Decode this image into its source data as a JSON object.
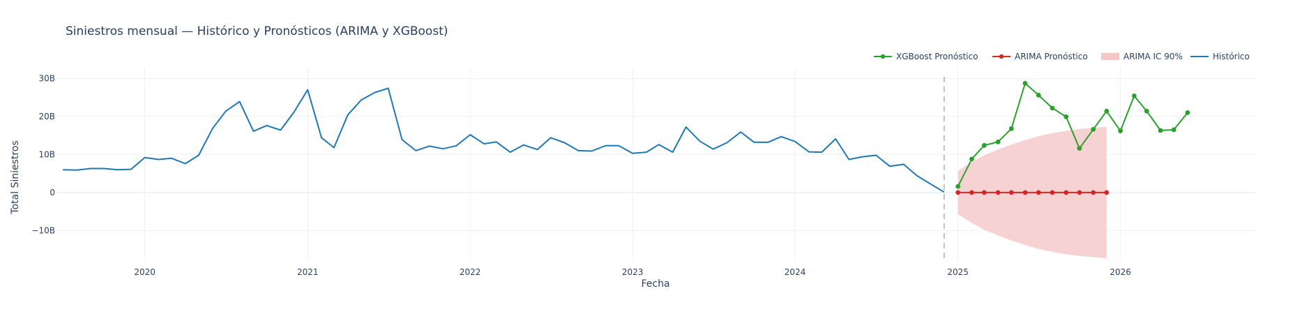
{
  "chart_data": {
    "type": "line",
    "title": "Siniestros mensual — Histórico y Pronósticos (ARIMA y XGBoost)",
    "xlabel": "Fecha",
    "ylabel": "Total Siniestros",
    "ylim": [
      -18,
      33
    ],
    "xlim": [
      "2019-06-15",
      "2026-10-31"
    ],
    "grid": true,
    "legend_position": "top-right",
    "x_ticks": [
      "2020",
      "2021",
      "2022",
      "2023",
      "2024",
      "2025",
      "2026"
    ],
    "y_ticks": [
      {
        "value": 30,
        "label": "30B"
      },
      {
        "value": 20,
        "label": "20B"
      },
      {
        "value": 10,
        "label": "10B"
      },
      {
        "value": 0,
        "label": "0"
      },
      {
        "value": -10,
        "label": "−10B"
      }
    ],
    "divider_date": "2024-12-01",
    "legend": [
      {
        "key": "xgb",
        "label": "XGBoost Pronóstico"
      },
      {
        "key": "arima",
        "label": "ARIMA Pronóstico"
      },
      {
        "key": "band",
        "label": "ARIMA IC 90%"
      },
      {
        "key": "hist",
        "label": "Histórico"
      }
    ],
    "colors": {
      "hist": "#1f77b4",
      "arima": "#d62728",
      "xgb": "#2ca02c",
      "band": "#f4c7c7",
      "divider": "#999999",
      "grid": "#ebf0f8"
    },
    "series": {
      "hist": {
        "name": "Histórico",
        "start": "2019-07",
        "values": [
          6.0,
          5.9,
          6.3,
          6.3,
          6.0,
          6.1,
          9.2,
          8.7,
          9.0,
          7.6,
          9.8,
          16.8,
          21.4,
          23.9,
          16.1,
          17.6,
          16.4,
          21.1,
          27.0,
          14.4,
          11.8,
          20.4,
          24.3,
          26.3,
          27.4,
          13.9,
          11.0,
          12.2,
          11.5,
          12.3,
          15.2,
          12.8,
          13.3,
          10.6,
          12.5,
          11.3,
          14.4,
          13.1,
          11.0,
          10.9,
          12.3,
          12.3,
          10.3,
          10.6,
          12.6,
          10.6,
          17.2,
          13.5,
          11.4,
          13.1,
          15.9,
          13.2,
          13.2,
          14.7,
          13.4,
          10.7,
          10.6,
          14.1,
          8.7,
          9.4,
          9.8,
          6.9,
          7.4,
          4.4,
          2.2,
          0.1
        ]
      },
      "arima": {
        "name": "ARIMA Pronóstico",
        "start": "2025-01",
        "values": [
          0,
          0,
          0,
          0,
          0,
          0,
          0,
          0,
          0,
          0,
          0,
          0
        ]
      },
      "band": {
        "name": "ARIMA IC 90%",
        "start": "2025-01",
        "upper": [
          5.7,
          8.0,
          9.8,
          11.3,
          12.6,
          13.8,
          14.8,
          15.6,
          16.2,
          16.7,
          17.0,
          17.3
        ],
        "lower": [
          -5.7,
          -8.0,
          -9.8,
          -11.3,
          -12.6,
          -13.8,
          -14.8,
          -15.6,
          -16.2,
          -16.7,
          -17.0,
          -17.3
        ]
      },
      "xgb": {
        "name": "XGBoost Pronóstico",
        "start": "2025-01",
        "values": [
          1.6,
          8.8,
          12.4,
          13.3,
          16.8,
          28.7,
          25.6,
          22.2,
          19.9,
          11.6,
          16.6,
          21.4,
          16.2,
          25.4,
          21.4,
          16.3,
          16.5,
          21.0
        ]
      }
    }
  }
}
